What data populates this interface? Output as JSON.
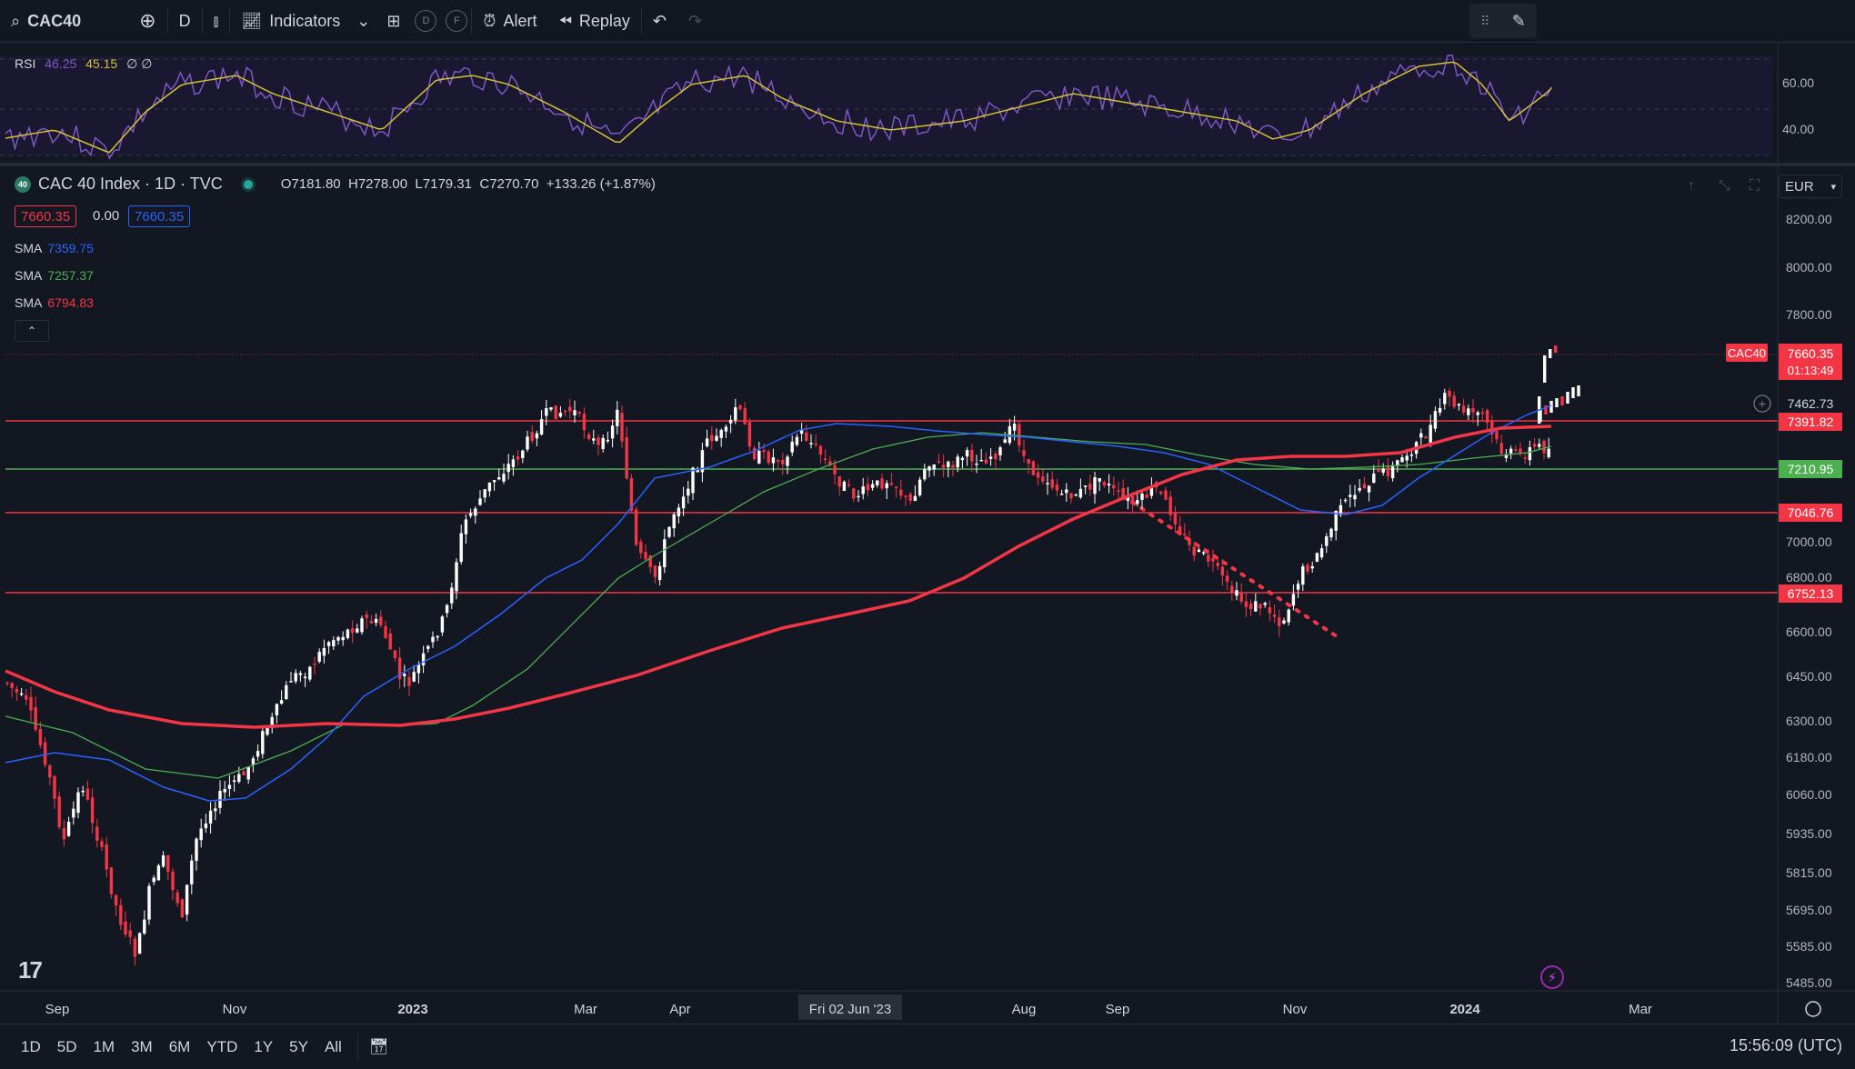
{
  "toolbar": {
    "symbol": "CAC40",
    "interval": "D",
    "indicators_label": "Indicators",
    "circle_d": "D",
    "circle_f": "F",
    "alert_label": "Alert",
    "replay_label": "Replay"
  },
  "rsi": {
    "label": "RSI",
    "value1": "46.25",
    "value2": "45.15",
    "extra": "∅ ∅",
    "ticks": [
      "60.00",
      "40.00"
    ]
  },
  "legend": {
    "logo": "40",
    "title": "CAC 40 Index · 1D · TVC",
    "o_label": "O",
    "o": "7181.80",
    "h_label": "H",
    "h": "7278.00",
    "l_label": "L",
    "l": "7179.31",
    "c_label": "C",
    "c": "7270.70",
    "change": "+133.26 (+1.87%)",
    "sell": "7660.35",
    "spread": "0.00",
    "buy": "7660.35"
  },
  "smas": [
    {
      "label": "SMA",
      "value": "7359.75",
      "color": "#2962ff"
    },
    {
      "label": "SMA",
      "value": "7257.37",
      "color": "#4caf50"
    },
    {
      "label": "SMA",
      "value": "6794.83",
      "color": "#f23645"
    }
  ],
  "currency": "EUR",
  "price_axis": [
    "8200.00",
    "8000.00",
    "7800.00",
    "7000.00",
    "6800.00",
    "6600.00",
    "6450.00",
    "6300.00",
    "6180.00",
    "6060.00",
    "5935.00",
    "5815.00",
    "5695.00",
    "5585.00",
    "5485.00"
  ],
  "labels": {
    "symbol_tag": "CAC40",
    "last_price": "7660.35",
    "countdown": "01:13:49",
    "crosshair": "7462.73",
    "h1": "7391.82",
    "h2": "7210.95",
    "h3": "7046.76",
    "h4": "6752.13"
  },
  "time_axis": [
    "Sep",
    "Nov",
    "2023",
    "Mar",
    "Apr",
    "Fri 02 Jun '23",
    "Aug",
    "Sep",
    "Nov",
    "2024",
    "Mar"
  ],
  "ranges": [
    "1D",
    "5D",
    "1M",
    "3M",
    "6M",
    "YTD",
    "1Y",
    "5Y",
    "All"
  ],
  "clock": "15:56:09 (UTC)",
  "colors": {
    "bg": "#131722",
    "up": "#ffffff",
    "down": "#f23645",
    "red_line": "#f23645",
    "green_line": "#4caf50",
    "blue_sma": "#2962ff",
    "rsi": "#7e57c2",
    "rsi_ma": "#d4c134"
  }
}
